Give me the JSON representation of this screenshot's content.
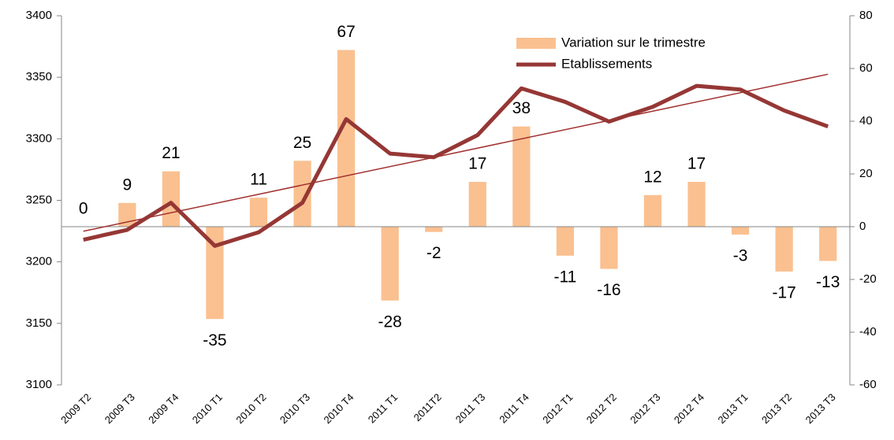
{
  "chart_data": {
    "type": "bar-line",
    "categories": [
      "2009 T2",
      "2009 T3",
      "2009 T4",
      "2010 T1",
      "2010 T2",
      "2010 T3",
      "2010 T4",
      "2011 T1",
      "2011T2",
      "2011 T3",
      "2011 T4",
      "2012 T1",
      "2012 T2",
      "2012 T3",
      "2012 T4",
      "2013 T1",
      "2013 T2",
      "2013 T3"
    ],
    "series": [
      {
        "name": "Variation sur le trimestre",
        "type": "bar",
        "axis": "y2",
        "color": "#fac090",
        "values": [
          0,
          9,
          21,
          -35,
          11,
          25,
          67,
          -28,
          -2,
          17,
          38,
          -11,
          -16,
          12,
          17,
          -3,
          -17,
          -13
        ]
      },
      {
        "name": "Etablissements",
        "type": "line",
        "axis": "y",
        "color": "#953735",
        "trendline": true,
        "values": [
          3218,
          3226,
          3248,
          3213,
          3224,
          3248,
          3316,
          3288,
          3285,
          3303,
          3341,
          3330,
          3314,
          3326,
          3343,
          3340,
          3323,
          3310
        ]
      }
    ],
    "ylim": [
      3100,
      3400
    ],
    "yticks": [
      3100,
      3150,
      3200,
      3250,
      3300,
      3350,
      3400
    ],
    "y2lim": [
      -60,
      80
    ],
    "y2ticks": [
      -60,
      -40,
      -20,
      0,
      20,
      40,
      60,
      80
    ],
    "legend": "top-right"
  }
}
